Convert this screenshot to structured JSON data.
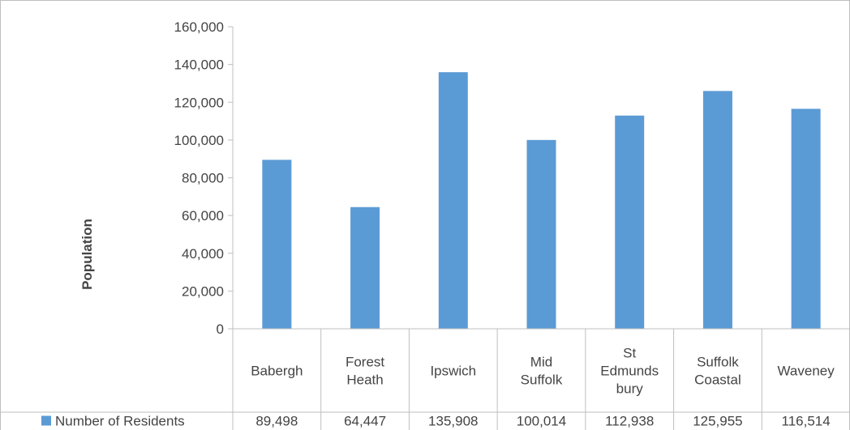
{
  "chart_data": {
    "type": "bar",
    "categories": [
      [
        "Babergh"
      ],
      [
        "Forest",
        "Heath"
      ],
      [
        "Ipswich"
      ],
      [
        "Mid",
        "Suffolk"
      ],
      [
        "St",
        "Edmunds",
        "bury"
      ],
      [
        "Suffolk",
        "Coastal"
      ],
      [
        "Waveney"
      ]
    ],
    "series": [
      {
        "name": "Number of Residents",
        "values": [
          89498,
          64447,
          135908,
          100014,
          112938,
          125955,
          116514
        ],
        "value_labels": [
          "89,498",
          "64,447",
          "135,908",
          "100,014",
          "112,938",
          "125,955",
          "116,514"
        ],
        "color": "#5b9bd5"
      }
    ],
    "title": "",
    "xlabel": "",
    "ylabel": "Population",
    "ylim": [
      0,
      160000
    ],
    "yticks": [
      0,
      20000,
      40000,
      60000,
      80000,
      100000,
      120000,
      140000,
      160000
    ],
    "ytick_labels": [
      "0",
      "20,000",
      "40,000",
      "60,000",
      "80,000",
      "100,000",
      "120,000",
      "140,000",
      "160,000"
    ],
    "grid": false,
    "legend": "data-table-left",
    "data_table": true
  }
}
